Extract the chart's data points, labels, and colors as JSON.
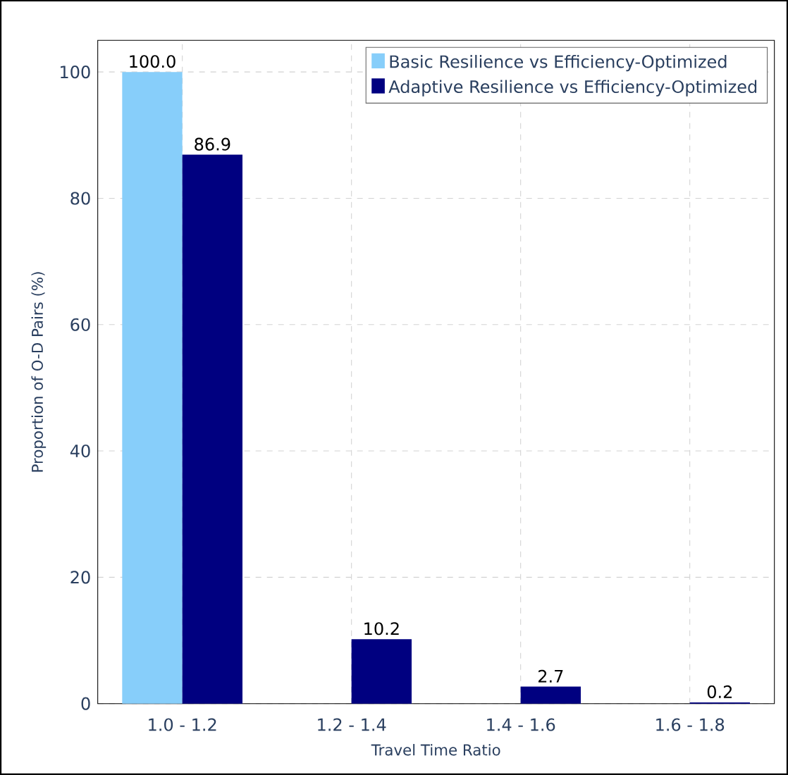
{
  "chart_data": {
    "type": "bar",
    "xlabel": "Travel Time Ratio",
    "ylabel": "Proportion of O-D Pairs (%)",
    "categories": [
      "1.0 - 1.2",
      "1.2 - 1.4",
      "1.4 - 1.6",
      "1.6 - 1.8"
    ],
    "series": [
      {
        "name": "Basic Resilience vs Efficiency-Optimized",
        "color": "#87cefa",
        "values": [
          100.0,
          0,
          0,
          0
        ],
        "value_labels": [
          "100.0",
          null,
          null,
          null
        ]
      },
      {
        "name": "Adaptive Resilience vs Efficiency-Optimized",
        "color": "#000080",
        "values": [
          86.9,
          10.2,
          2.7,
          0.2
        ],
        "value_labels": [
          "86.9",
          "10.2",
          "2.7",
          "0.2"
        ]
      }
    ],
    "ylim": [
      0,
      105
    ],
    "yticks": [
      0,
      20,
      40,
      60,
      80,
      100
    ],
    "grid": true,
    "legend": "top right"
  }
}
